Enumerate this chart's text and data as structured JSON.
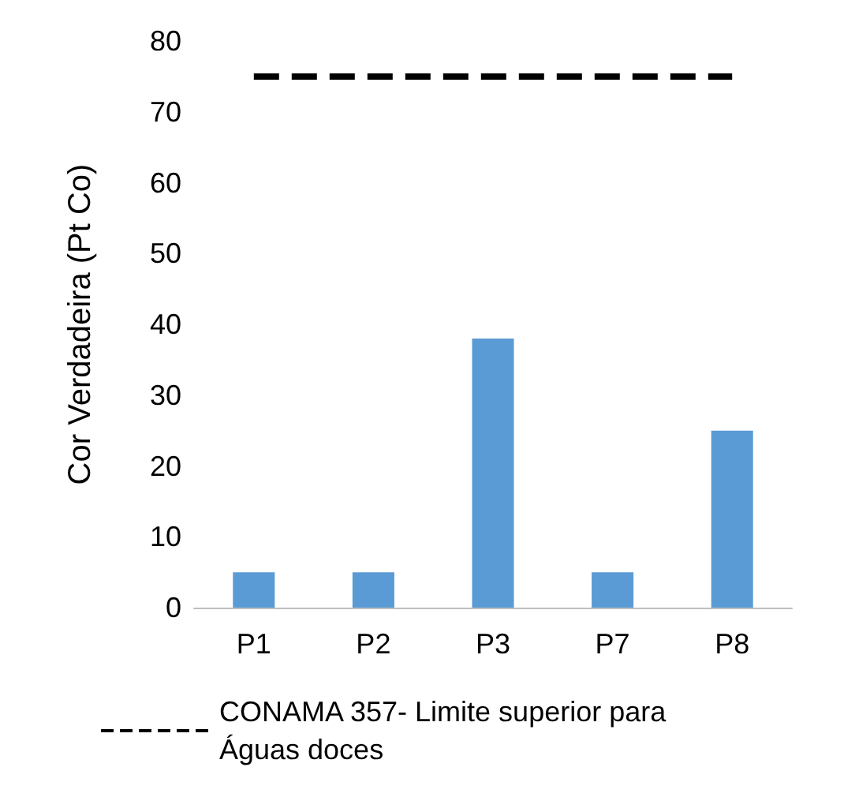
{
  "chart_data": {
    "type": "bar",
    "ylabel": "Cor Verdadeira (Pt Co)",
    "categories": [
      "P1",
      "P2",
      "P3",
      "P7",
      "P8"
    ],
    "series": [
      {
        "color": "#5b9bd5",
        "values": [
          5,
          5,
          38,
          5,
          25
        ]
      },
      {
        "type": "line",
        "name": "CONAMA 357- Limite superior para Águas doces",
        "color": "#000000",
        "line_style": "dashed",
        "marker": "none",
        "values": [
          75,
          75,
          75,
          75,
          75
        ]
      }
    ],
    "ylim": [
      0,
      80
    ],
    "yticks": [
      0,
      10,
      20,
      30,
      40,
      50,
      60,
      70,
      80
    ],
    "grid": false,
    "legend": "bottom"
  }
}
